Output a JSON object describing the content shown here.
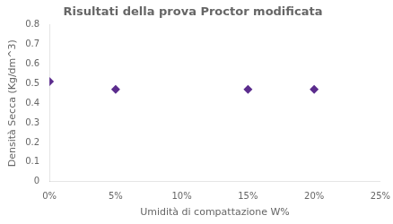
{
  "chart_data": {
    "type": "scatter",
    "title": "Risultati della prova Proctor modificata",
    "xlabel": "Umidità di compattazione W%",
    "ylabel": "Densità Secca (Kg/dm^3)",
    "x": [
      0.0,
      0.05,
      0.15,
      0.2
    ],
    "values": [
      0.51,
      0.47,
      0.47,
      0.47
    ],
    "color": "#5B2C8D",
    "marker": "diamond",
    "xlim": [
      0,
      0.25
    ],
    "ylim": [
      0,
      0.8
    ],
    "xticks": [
      {
        "value": 0.0,
        "label": "0%"
      },
      {
        "value": 0.05,
        "label": "5%"
      },
      {
        "value": 0.1,
        "label": "10%"
      },
      {
        "value": 0.15,
        "label": "15%"
      },
      {
        "value": 0.2,
        "label": "20%"
      },
      {
        "value": 0.25,
        "label": "25%"
      }
    ],
    "yticks": [
      0,
      0.1,
      0.2,
      0.3,
      0.4,
      0.5,
      0.6,
      0.7,
      0.8
    ],
    "grid": false
  }
}
